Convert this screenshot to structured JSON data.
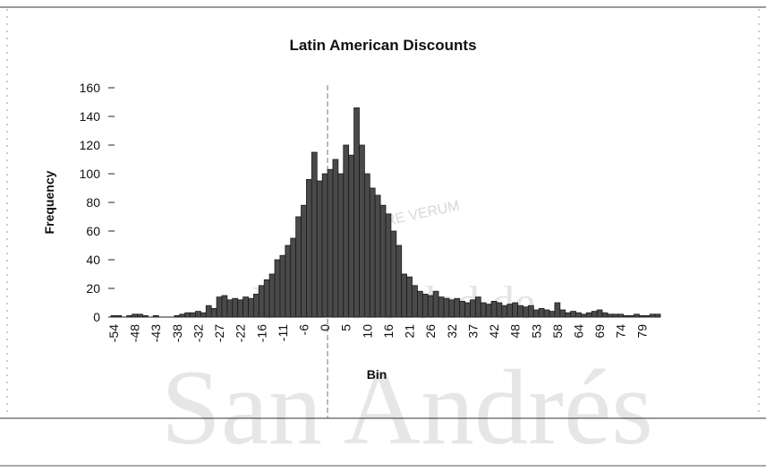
{
  "chart_data": {
    "type": "bar",
    "title": "Latin American Discounts",
    "x_label": "Bin",
    "y_label": "Frequency",
    "categories": [
      "-54",
      null,
      null,
      null,
      "-48",
      null,
      null,
      null,
      "-43",
      null,
      null,
      null,
      "-38",
      null,
      null,
      null,
      "-32",
      null,
      null,
      null,
      "-27",
      null,
      null,
      null,
      "-22",
      null,
      null,
      null,
      "-16",
      null,
      null,
      null,
      "-11",
      null,
      null,
      null,
      "-6",
      null,
      null,
      null,
      "0",
      null,
      null,
      null,
      "5",
      null,
      null,
      null,
      "10",
      null,
      null,
      null,
      "16",
      null,
      null,
      null,
      "21",
      null,
      null,
      null,
      "26",
      null,
      null,
      null,
      "32",
      null,
      null,
      null,
      "37",
      null,
      null,
      null,
      "42",
      null,
      null,
      null,
      "48",
      null,
      null,
      null,
      "53",
      null,
      null,
      null,
      "58",
      null,
      null,
      null,
      "64",
      null,
      null,
      null,
      "69",
      null,
      null,
      null,
      "74",
      null,
      null,
      null,
      "79",
      null,
      null,
      null
    ],
    "values": [
      1,
      1,
      0,
      1,
      2,
      2,
      1,
      0,
      1,
      0,
      0,
      0,
      1,
      2,
      3,
      3,
      4,
      3,
      8,
      6,
      14,
      15,
      12,
      13,
      12,
      14,
      13,
      16,
      22,
      26,
      30,
      40,
      43,
      50,
      55,
      70,
      78,
      96,
      115,
      95,
      100,
      103,
      110,
      100,
      120,
      113,
      146,
      120,
      100,
      90,
      85,
      78,
      72,
      60,
      50,
      30,
      28,
      22,
      18,
      16,
      15,
      18,
      14,
      13,
      12,
      13,
      11,
      10,
      12,
      14,
      10,
      9,
      11,
      10,
      8,
      9,
      10,
      8,
      7,
      8,
      5,
      6,
      5,
      4,
      10,
      5,
      3,
      4,
      3,
      2,
      3,
      4,
      5,
      3,
      2,
      2,
      2,
      1,
      1,
      2,
      1,
      1,
      2,
      2
    ],
    "color": "#4a4a4a",
    "ylim": [
      0,
      160
    ],
    "yticks": [
      0,
      20,
      40,
      60,
      80,
      100,
      120,
      140,
      160
    ],
    "grid": false
  },
  "watermark": {
    "motto": "QUAERERE VERUM",
    "line1": "Universidad de",
    "line2": "San Andrés"
  }
}
